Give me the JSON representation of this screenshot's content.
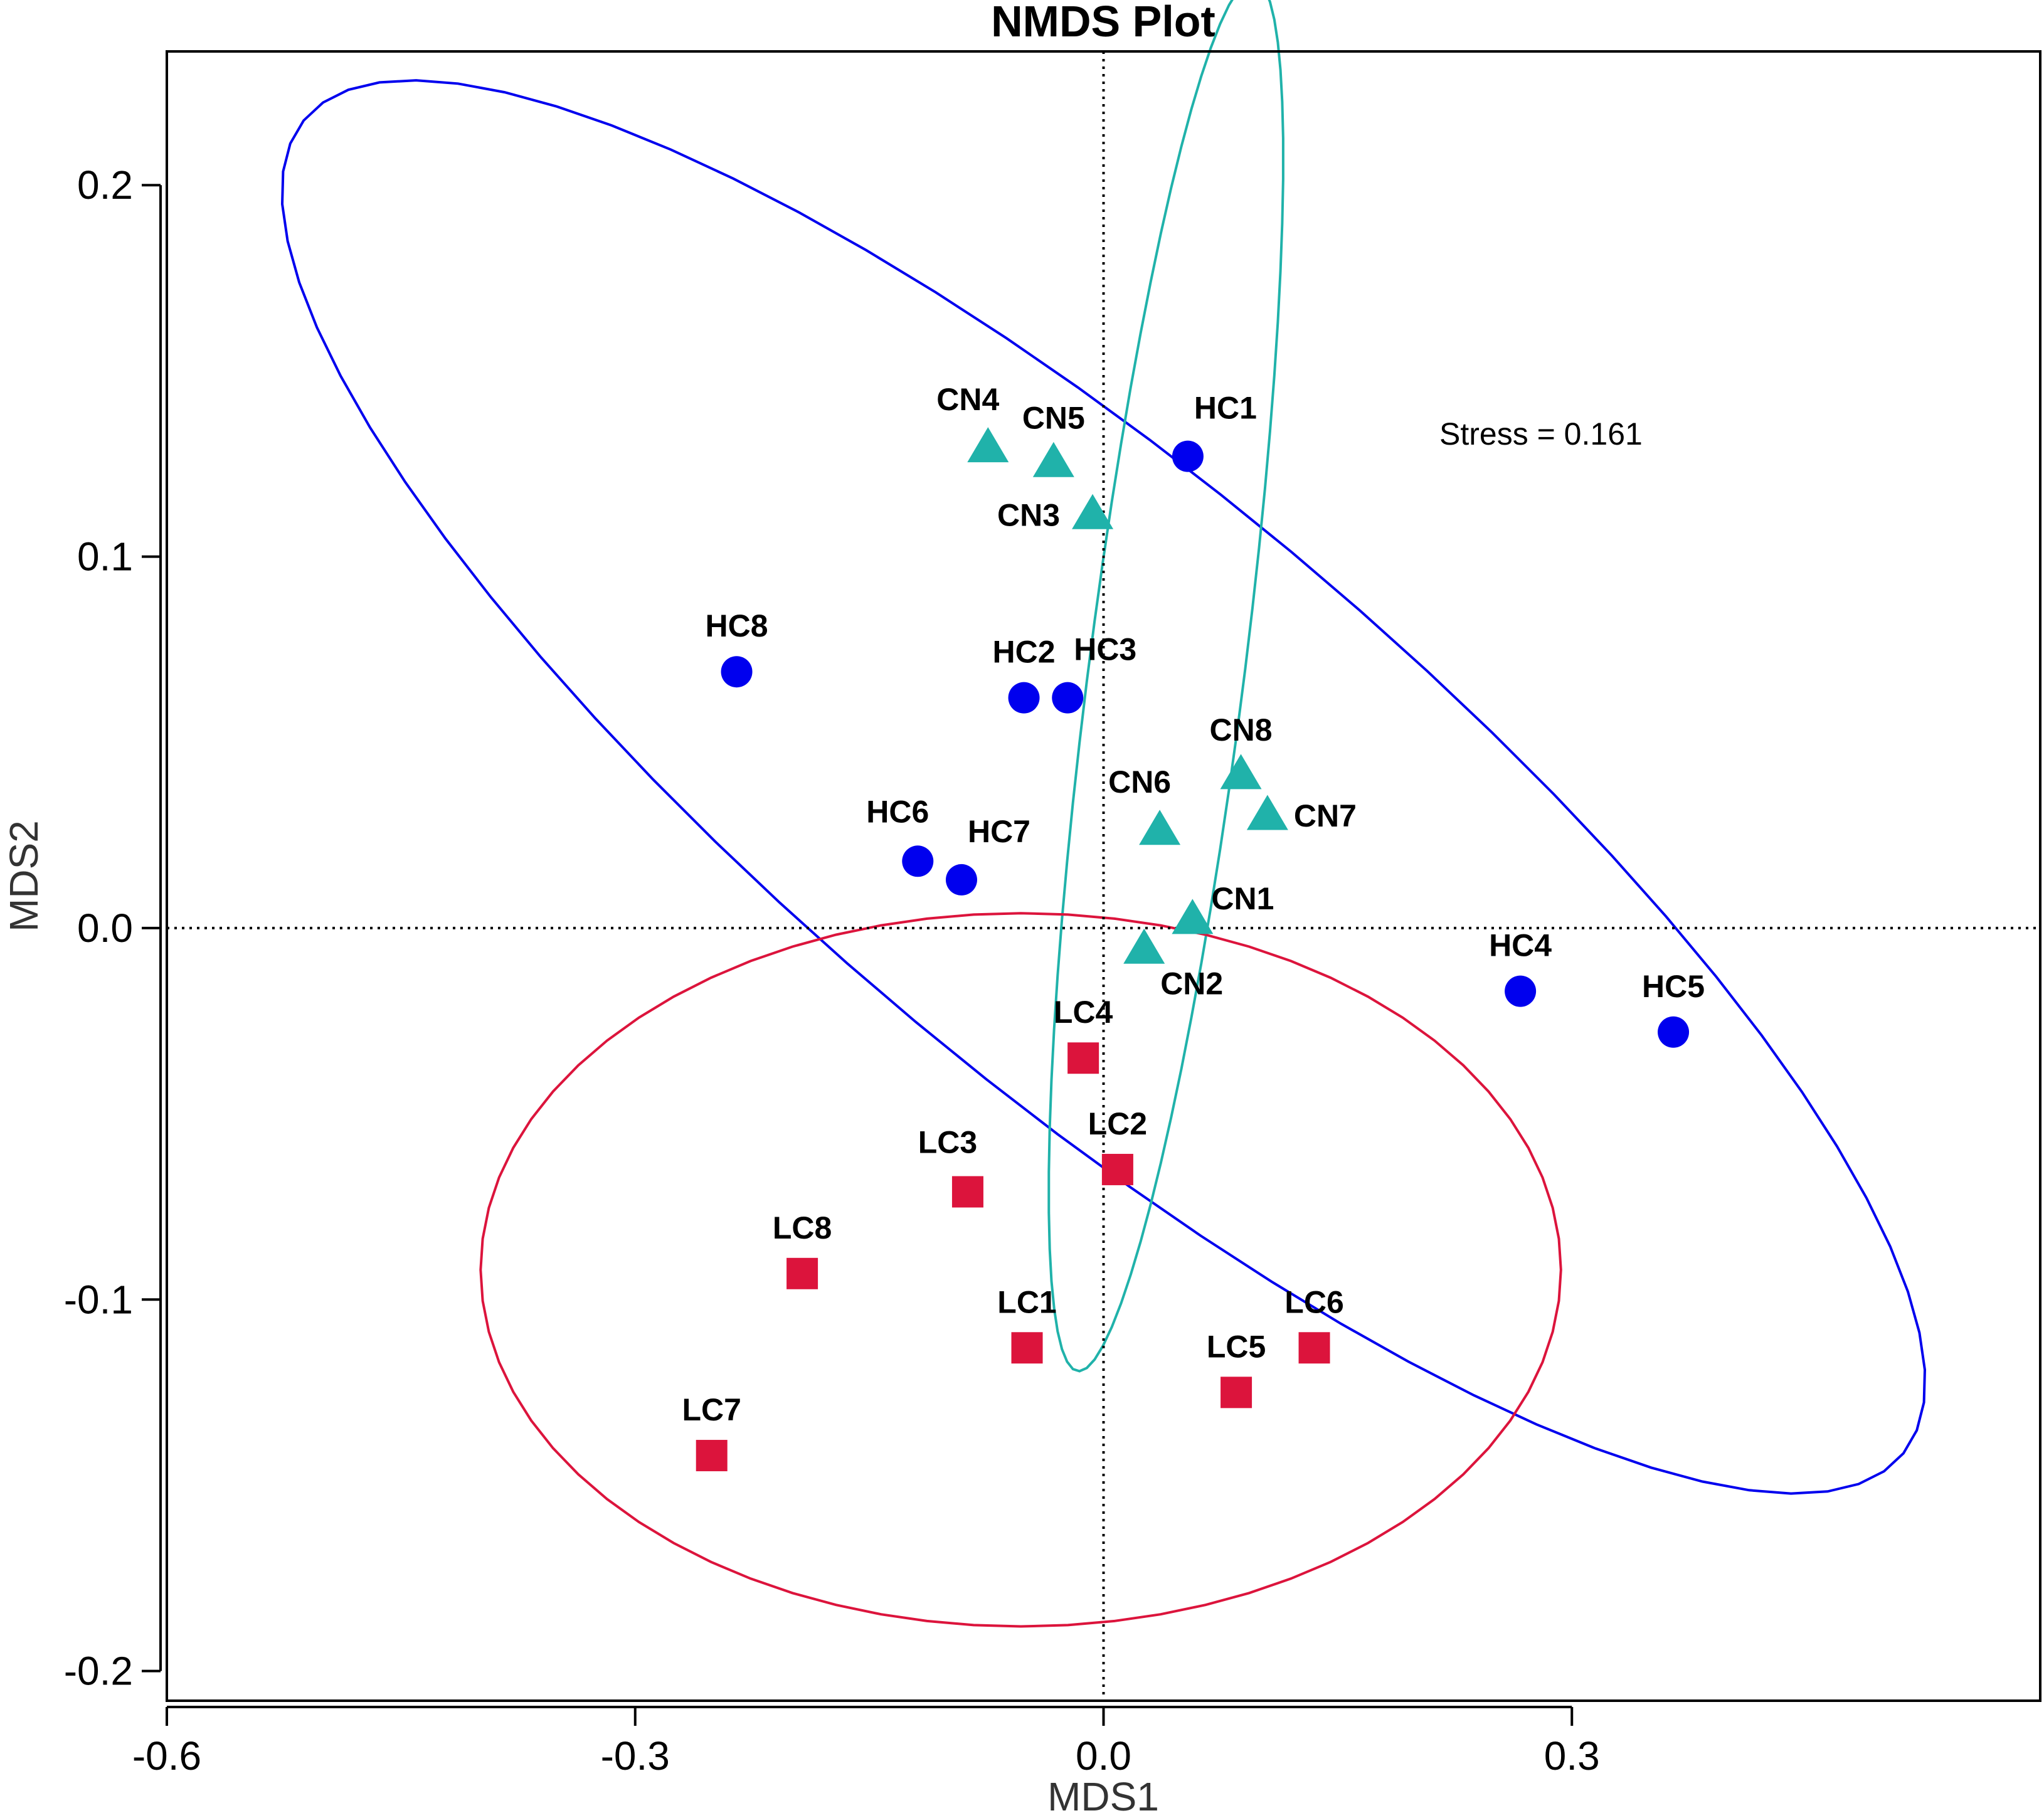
{
  "chart_data": {
    "type": "scatter",
    "title": "NMDS Plot",
    "xlabel": "MDS1",
    "ylabel": "MDS2",
    "xlim": [
      -0.6,
      0.6
    ],
    "ylim": [
      -0.208,
      0.236
    ],
    "xticks": [
      {
        "value": -0.6,
        "label": "-0.6"
      },
      {
        "value": -0.3,
        "label": "-0.3"
      },
      {
        "value": 0.0,
        "label": "0.0"
      },
      {
        "value": 0.3,
        "label": "0.3"
      }
    ],
    "yticks": [
      {
        "value": -0.2,
        "label": "-0.2"
      },
      {
        "value": -0.1,
        "label": "-0.1"
      },
      {
        "value": 0.0,
        "label": "0.0"
      },
      {
        "value": 0.1,
        "label": "0.1"
      },
      {
        "value": 0.2,
        "label": "0.2"
      }
    ],
    "reference_lines": {
      "x": 0,
      "y": 0,
      "style": "dotted"
    },
    "annotation": "Stress = 0.161",
    "series": [
      {
        "name": "HC",
        "marker": "circle",
        "color": "#0000ee",
        "points": [
          {
            "label": "HC1",
            "x": 0.054,
            "y": 0.127,
            "label_pos": "above-right"
          },
          {
            "label": "HC2",
            "x": -0.051,
            "y": 0.062,
            "label_pos": "above"
          },
          {
            "label": "HC3",
            "x": -0.023,
            "y": 0.062,
            "label_pos": "above-right"
          },
          {
            "label": "HC4",
            "x": 0.267,
            "y": -0.017,
            "label_pos": "above"
          },
          {
            "label": "HC5",
            "x": 0.365,
            "y": -0.028,
            "label_pos": "above"
          },
          {
            "label": "HC6",
            "x": -0.119,
            "y": 0.018,
            "label_pos": "above-left"
          },
          {
            "label": "HC7",
            "x": -0.091,
            "y": 0.013,
            "label_pos": "above-right"
          },
          {
            "label": "HC8",
            "x": -0.235,
            "y": 0.069,
            "label_pos": "above"
          }
        ]
      },
      {
        "name": "CN",
        "marker": "triangle",
        "color": "#20b2aa",
        "points": [
          {
            "label": "CN1",
            "x": 0.057,
            "y": 0.002,
            "label_pos": "right-up"
          },
          {
            "label": "CN2",
            "x": 0.026,
            "y": -0.006,
            "label_pos": "below-right"
          },
          {
            "label": "CN3",
            "x": -0.007,
            "y": 0.111,
            "label_pos": "left"
          },
          {
            "label": "CN4",
            "x": -0.074,
            "y": 0.129,
            "label_pos": "above-left"
          },
          {
            "label": "CN5",
            "x": -0.032,
            "y": 0.125,
            "label_pos": "above"
          },
          {
            "label": "CN6",
            "x": 0.036,
            "y": 0.026,
            "label_pos": "above-left"
          },
          {
            "label": "CN7",
            "x": 0.105,
            "y": 0.03,
            "label_pos": "right"
          },
          {
            "label": "CN8",
            "x": 0.088,
            "y": 0.041,
            "label_pos": "above"
          }
        ]
      },
      {
        "name": "LC",
        "marker": "square",
        "color": "#dc143c",
        "points": [
          {
            "label": "LC1",
            "x": -0.049,
            "y": -0.113,
            "label_pos": "above"
          },
          {
            "label": "LC2",
            "x": 0.009,
            "y": -0.065,
            "label_pos": "above"
          },
          {
            "label": "LC3",
            "x": -0.087,
            "y": -0.071,
            "label_pos": "above-left"
          },
          {
            "label": "LC4",
            "x": -0.013,
            "y": -0.035,
            "label_pos": "above"
          },
          {
            "label": "LC5",
            "x": 0.085,
            "y": -0.125,
            "label_pos": "above"
          },
          {
            "label": "LC6",
            "x": 0.135,
            "y": -0.113,
            "label_pos": "above"
          },
          {
            "label": "LC7",
            "x": -0.251,
            "y": -0.142,
            "label_pos": "above"
          },
          {
            "label": "LC8",
            "x": -0.193,
            "y": -0.093,
            "label_pos": "above"
          }
        ]
      }
    ],
    "ellipses": [
      {
        "group": "HC",
        "color": "#0000ee",
        "cx": 0.0,
        "cy": 0.038,
        "a": 0.551,
        "b": 0.098,
        "angle_deg": -17.5
      },
      {
        "group": "CN",
        "color": "#20b2aa",
        "cx": 0.04,
        "cy": 0.068,
        "a": 0.196,
        "b": 0.048,
        "angle_deg": 72.3
      },
      {
        "group": "LC",
        "color": "#dc143c",
        "cx": -0.053,
        "cy": -0.092,
        "a": 0.346,
        "b": 0.096,
        "angle_deg": 0
      }
    ]
  }
}
